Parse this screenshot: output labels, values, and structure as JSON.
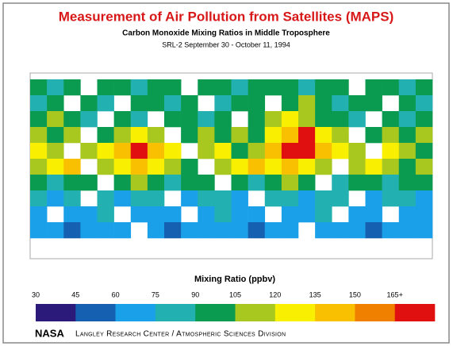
{
  "title": "Measurement of Air Pollution from Satellites (MAPS)",
  "subtitle": "Carbon Monoxide Mixing Ratios in Middle Troposphere",
  "date": "SRL-2 September 30 - October 11, 1994",
  "map": {
    "cells": [
      [
        97,
        82,
        97,
        null,
        97,
        97,
        82,
        97,
        97,
        null,
        97,
        97,
        82,
        97,
        97,
        97,
        82,
        97,
        97,
        null,
        97,
        97,
        82,
        97
      ],
      [
        82,
        97,
        null,
        97,
        82,
        null,
        97,
        97,
        82,
        97,
        null,
        82,
        97,
        97,
        null,
        97,
        112,
        97,
        82,
        97,
        97,
        null,
        97,
        82
      ],
      [
        97,
        112,
        97,
        82,
        null,
        97,
        82,
        null,
        97,
        97,
        82,
        97,
        null,
        97,
        112,
        127,
        112,
        97,
        97,
        82,
        null,
        97,
        82,
        97
      ],
      [
        112,
        97,
        112,
        null,
        97,
        112,
        127,
        112,
        null,
        97,
        112,
        97,
        112,
        97,
        127,
        142,
        170,
        127,
        112,
        null,
        97,
        112,
        97,
        112
      ],
      [
        127,
        112,
        null,
        112,
        127,
        142,
        170,
        142,
        127,
        null,
        112,
        127,
        97,
        112,
        142,
        170,
        170,
        142,
        127,
        112,
        null,
        127,
        112,
        97
      ],
      [
        112,
        127,
        142,
        null,
        112,
        127,
        142,
        127,
        112,
        97,
        null,
        112,
        127,
        142,
        127,
        142,
        127,
        112,
        null,
        112,
        127,
        112,
        97,
        112
      ],
      [
        97,
        82,
        97,
        97,
        null,
        97,
        112,
        97,
        82,
        97,
        97,
        null,
        97,
        82,
        97,
        112,
        97,
        null,
        82,
        97,
        97,
        82,
        97,
        97
      ],
      [
        82,
        67,
        82,
        null,
        82,
        67,
        82,
        82,
        null,
        67,
        82,
        82,
        67,
        null,
        82,
        82,
        67,
        82,
        82,
        null,
        67,
        82,
        82,
        67
      ],
      [
        67,
        null,
        67,
        67,
        82,
        null,
        67,
        67,
        67,
        null,
        67,
        82,
        67,
        67,
        null,
        67,
        67,
        82,
        null,
        67,
        67,
        null,
        67,
        67
      ],
      [
        67,
        67,
        52,
        67,
        67,
        67,
        null,
        67,
        52,
        67,
        67,
        67,
        67,
        52,
        67,
        67,
        null,
        67,
        67,
        67,
        52,
        67,
        67,
        67
      ]
    ]
  },
  "colorbar": {
    "label": "Mixing Ratio (ppbv)",
    "ticks": [
      30,
      45,
      60,
      75,
      90,
      105,
      120,
      135,
      150,
      {
        "value": 165,
        "label": "165+"
      }
    ],
    "colors": [
      "#2b1a7a",
      "#1560b0",
      "#1aa0e8",
      "#22b0b0",
      "#0a9a50",
      "#a8c820",
      "#f8f000",
      "#f8c000",
      "#f08000",
      "#e01010"
    ]
  },
  "footer": {
    "agency": "NASA",
    "division": "Langley Research Center / Atmospheric Sciences Division"
  }
}
